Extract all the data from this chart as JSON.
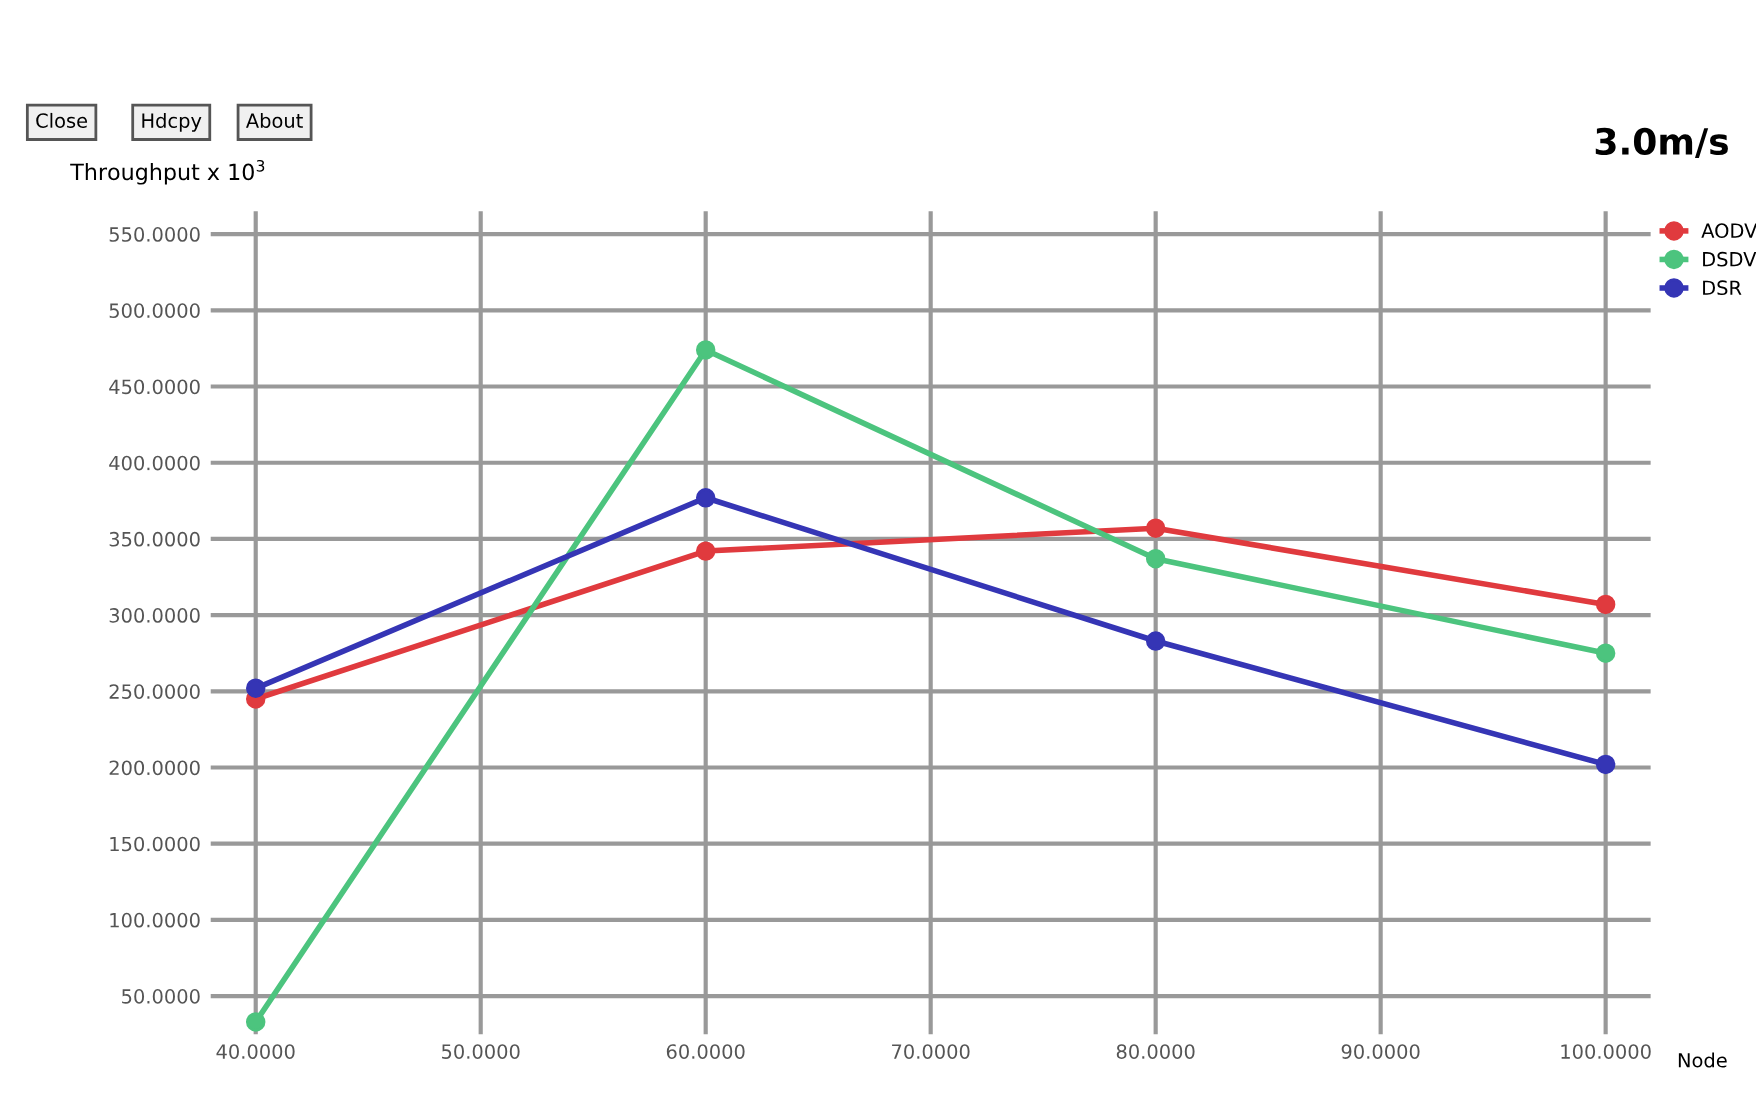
{
  "chart_data": {
    "type": "line",
    "title": "3.0m/s",
    "ylabel": "Throughput x 10$^{3}$",
    "xlabel": "Node",
    "annotations": [
      "Close",
      "Hdcpy",
      "About"
    ],
    "x": [
      40,
      60,
      80,
      100
    ],
    "series": [
      {
        "name": "AODV",
        "color": "#e03a3e",
        "values": [
          245,
          342,
          357,
          307
        ]
      },
      {
        "name": "DSDV",
        "color": "#4cc47e",
        "values": [
          33,
          474,
          337,
          275
        ]
      },
      {
        "name": "DSR",
        "color": "#3535b5",
        "values": [
          252,
          377,
          283,
          202
        ]
      }
    ],
    "xlim": [
      38,
      102
    ],
    "ylim": [
      25,
      565
    ],
    "xticks": [
      {
        "value": 40,
        "label": "40.0000"
      },
      {
        "value": 50,
        "label": "50.0000"
      },
      {
        "value": 60,
        "label": "60.0000"
      },
      {
        "value": 70,
        "label": "70.0000"
      },
      {
        "value": 80,
        "label": "80.0000"
      },
      {
        "value": 90,
        "label": "90.0000"
      },
      {
        "value": 100,
        "label": "100.0000"
      }
    ],
    "yticks": [
      {
        "value": 50,
        "label": "50.0000"
      },
      {
        "value": 100,
        "label": "100.0000"
      },
      {
        "value": 150,
        "label": "150.0000"
      },
      {
        "value": 200,
        "label": "200.0000"
      },
      {
        "value": 250,
        "label": "250.0000"
      },
      {
        "value": 300,
        "label": "300.0000"
      },
      {
        "value": 350,
        "label": "350.0000"
      },
      {
        "value": 400,
        "label": "400.0000"
      },
      {
        "value": 450,
        "label": "450.0000"
      },
      {
        "value": 500,
        "label": "500.0000"
      },
      {
        "value": 550,
        "label": "550.0000"
      }
    ],
    "grid": true,
    "legend": "top right",
    "marker": "circle",
    "line_style": "solid"
  }
}
